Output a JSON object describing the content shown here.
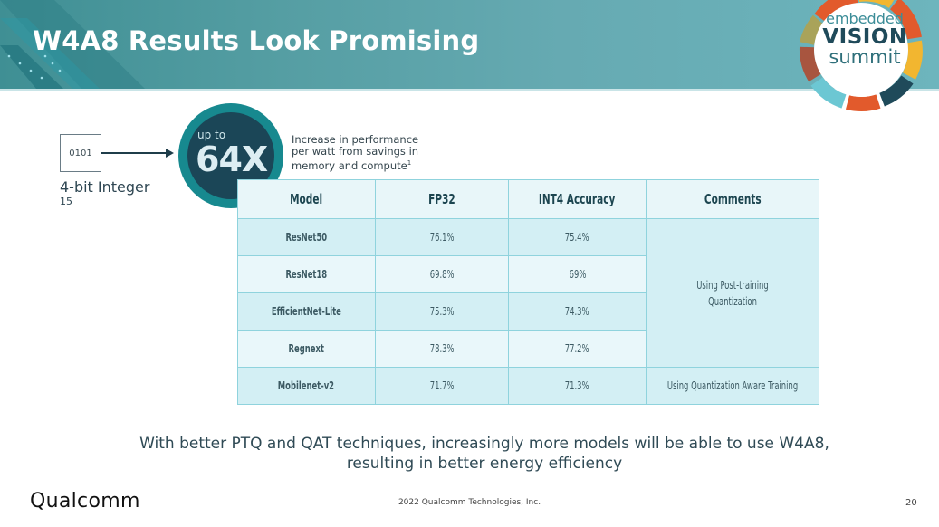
{
  "slide": {
    "title": "W4A8 Results Look Promising",
    "page_number": "20",
    "copyright": "2022 Qualcomm Technologies, Inc.",
    "brand": "Qualcomm"
  },
  "event_logo": {
    "line1": "embedded",
    "line2": "VISION",
    "line3": "summit"
  },
  "callout": {
    "box_value": "0101",
    "box_label": "4-bit Integer",
    "box_sub_value": "15",
    "badge_prefix": "up to",
    "badge_value": "64X",
    "description": "Increase in performance per watt from savings in memory and compute",
    "footnote_marker": "1"
  },
  "table": {
    "headers": [
      "Model",
      "FP32",
      "INT4 Accuracy",
      "Comments"
    ],
    "rows": [
      {
        "model": "ResNet50",
        "fp32": "76.1%",
        "int4": "75.4%"
      },
      {
        "model": "ResNet18",
        "fp32": "69.8%",
        "int4": "69%"
      },
      {
        "model": "EfficientNet-Lite",
        "fp32": "75.3%",
        "int4": "74.3%"
      },
      {
        "model": "Regnext",
        "fp32": "78.3%",
        "int4": "77.2%"
      },
      {
        "model": "Mobilenet-v2",
        "fp32": "71.7%",
        "int4": "71.3%"
      }
    ],
    "comments": {
      "ptq": "Using Post-training Quantization",
      "qat": "Using Quantization Aware Training"
    }
  },
  "summary": "With better PTQ and QAT techniques, increasingly more models will be able to use W4A8, resulting in better energy efficiency",
  "colors": {
    "header_teal": "#559ea3",
    "badge_ring": "#17898f",
    "badge_fill": "#1b4657",
    "table_border": "#8fd3dd",
    "row_dark": "#d3eff4",
    "row_light": "#e9f7fa"
  }
}
